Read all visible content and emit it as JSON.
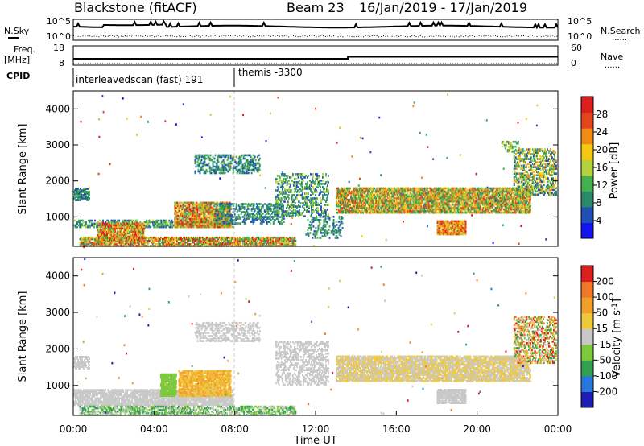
{
  "header": {
    "station": "Blackstone (fitACF)",
    "beam": "Beam 23",
    "date_range": "16/Jan/2019 - 17/Jan/2019"
  },
  "side_labels": {
    "nsky": "N.Sky",
    "nsearch": "N.Search",
    "freq": "Freq.",
    "freq_unit": "[MHz]",
    "nave": "Nave",
    "cpid": "CPID",
    "legend_dotted": "......"
  },
  "cpid": {
    "first": "interleavedscan (fast) 191",
    "second": "themis -3300"
  },
  "colors": {
    "power": [
      "#1414f0",
      "#2050b4",
      "#2a8a6a",
      "#44b050",
      "#b4d23c",
      "#f5c814",
      "#f08c14",
      "#e6461e",
      "#dc1e1e"
    ],
    "velocity": [
      "#1e1eb4",
      "#2878dc",
      "#32a050",
      "#7dc83c",
      "#c8c8c8",
      "#f0c83c",
      "#f0a028",
      "#f07828",
      "#dc1e1e"
    ],
    "ground_scatter": "#b9b9b9"
  },
  "chart_data": [
    {
      "type": "line",
      "name": "noise",
      "y_ticks": [
        "10^5",
        "10^0"
      ],
      "y2_ticks": [
        "10^5",
        "10^0"
      ]
    },
    {
      "type": "line",
      "name": "frequency",
      "y_ticks": [
        "18",
        "8"
      ],
      "y2_ticks": [
        "60",
        "0"
      ]
    },
    {
      "type": "heatmap",
      "name": "power",
      "ylabel": "Slant Range [km]",
      "colorbar_label": "Power [dB]",
      "colorbar_ticks": [
        "28",
        "24",
        "20",
        "16",
        "12",
        "8",
        "4"
      ],
      "y_ticks": [
        "1000",
        "2000",
        "3000",
        "4000"
      ],
      "yrange": [
        180,
        4500
      ],
      "xrange_hours": [
        0,
        24
      ],
      "scatter_regions": [
        {
          "t": [
            0.0,
            7.9
          ],
          "r": [
            700,
            900
          ],
          "dens": 0.45,
          "lvl": [
            1,
            4
          ]
        },
        {
          "t": [
            0.0,
            0.8
          ],
          "r": [
            1450,
            1800
          ],
          "dens": 0.6,
          "lvl": [
            1,
            3
          ]
        },
        {
          "t": [
            0.3,
            11.0
          ],
          "r": [
            180,
            450
          ],
          "dens": 0.7,
          "lvl": [
            2,
            8
          ]
        },
        {
          "t": [
            1.2,
            3.5
          ],
          "r": [
            300,
            800
          ],
          "dens": 0.7,
          "lvl": [
            3,
            8
          ]
        },
        {
          "t": [
            5.0,
            7.8
          ],
          "r": [
            700,
            1400
          ],
          "dens": 0.65,
          "lvl": [
            3,
            8
          ]
        },
        {
          "t": [
            7.0,
            10.4
          ],
          "r": [
            800,
            1350
          ],
          "dens": 0.35,
          "lvl": [
            1,
            3
          ]
        },
        {
          "t": [
            6.0,
            9.2
          ],
          "r": [
            2200,
            2700
          ],
          "dens": 0.35,
          "lvl": [
            1,
            3
          ]
        },
        {
          "t": [
            10.0,
            12.6
          ],
          "r": [
            1000,
            2200
          ],
          "dens": 0.3,
          "lvl": [
            1,
            4
          ]
        },
        {
          "t": [
            11.5,
            13.3
          ],
          "r": [
            400,
            1000
          ],
          "dens": 0.25,
          "lvl": [
            1,
            3
          ]
        },
        {
          "t": [
            13.0,
            22.6
          ],
          "r": [
            1100,
            1800
          ],
          "dens": 0.7,
          "lvl": [
            2,
            7
          ]
        },
        {
          "t": [
            18.0,
            19.4
          ],
          "r": [
            500,
            900
          ],
          "dens": 0.75,
          "lvl": [
            4,
            8
          ]
        },
        {
          "t": [
            21.8,
            23.9
          ],
          "r": [
            1600,
            2900
          ],
          "dens": 0.4,
          "lvl": [
            1,
            6
          ]
        },
        {
          "t": [
            21.2,
            22.0
          ],
          "r": [
            2800,
            3100
          ],
          "dens": 0.3,
          "lvl": [
            2,
            5
          ]
        }
      ]
    },
    {
      "type": "heatmap",
      "name": "velocity",
      "ylabel": "Slant Range [km]",
      "colorbar_label": "Velocity [m s^-1]",
      "colorbar_ticks": [
        "200",
        "100",
        "50",
        "15",
        "-15",
        "-50",
        "-100",
        "-200"
      ],
      "y_ticks": [
        "1000",
        "2000",
        "3000",
        "4000"
      ],
      "yrange": [
        180,
        4500
      ],
      "xrange_hours": [
        0,
        24
      ],
      "x_ticks": [
        "00:00",
        "04:00",
        "08:00",
        "12:00",
        "16:00",
        "20:00",
        "00:00"
      ],
      "xlabel": "Time UT",
      "scatter_regions": [
        {
          "t": [
            0.0,
            7.9
          ],
          "r": [
            450,
            900
          ],
          "dens": 0.7,
          "lvl": [
            4,
            4
          ]
        },
        {
          "t": [
            0.0,
            0.8
          ],
          "r": [
            1450,
            1800
          ],
          "dens": 0.5,
          "lvl": [
            4,
            4
          ]
        },
        {
          "t": [
            0.3,
            11.0
          ],
          "r": [
            180,
            450
          ],
          "dens": 0.5,
          "lvl": [
            2,
            4
          ]
        },
        {
          "t": [
            4.3,
            5.1
          ],
          "r": [
            700,
            1300
          ],
          "dens": 0.8,
          "lvl": [
            3,
            3
          ]
        },
        {
          "t": [
            5.2,
            7.8
          ],
          "r": [
            700,
            1400
          ],
          "dens": 0.75,
          "lvl": [
            5,
            6
          ]
        },
        {
          "t": [
            6.0,
            9.2
          ],
          "r": [
            2200,
            2700
          ],
          "dens": 0.35,
          "lvl": [
            4,
            4
          ]
        },
        {
          "t": [
            10.0,
            12.6
          ],
          "r": [
            1000,
            2200
          ],
          "dens": 0.35,
          "lvl": [
            4,
            4
          ]
        },
        {
          "t": [
            13.0,
            22.6
          ],
          "r": [
            1100,
            1800
          ],
          "dens": 0.7,
          "lvl": [
            4,
            5
          ]
        },
        {
          "t": [
            18.0,
            19.4
          ],
          "r": [
            500,
            900
          ],
          "dens": 0.75,
          "lvl": [
            4,
            4
          ]
        },
        {
          "t": [
            21.8,
            23.9
          ],
          "r": [
            1600,
            2900
          ],
          "dens": 0.4,
          "lvl": [
            2,
            8
          ]
        }
      ]
    }
  ]
}
